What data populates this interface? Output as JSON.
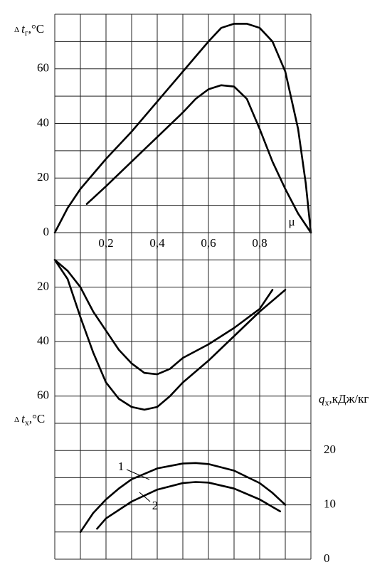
{
  "chart_data": [
    {
      "type": "line",
      "ylabel": {
        "symbol": "Δ",
        "var": "t",
        "sub": "г",
        "unit": ",°C"
      },
      "xlabel": "μ",
      "xlim": [
        0,
        1
      ],
      "xticks": [
        {
          "value": 0.2,
          "label": "0,2"
        },
        {
          "value": 0.4,
          "label": "0,4"
        },
        {
          "value": 0.6,
          "label": "0,6"
        },
        {
          "value": 0.8,
          "label": "0,8"
        }
      ],
      "xgrid": [
        0,
        0.1,
        0.2,
        0.3,
        0.4,
        0.5,
        0.6,
        0.7,
        0.8,
        0.9,
        1
      ],
      "ylim": [
        0,
        80
      ],
      "yticks": [
        0,
        20,
        40,
        60
      ],
      "ygrid": [
        0,
        10,
        20,
        30,
        40,
        50,
        60,
        70,
        80
      ],
      "inverted": false,
      "axis_side": "left",
      "series": [
        {
          "color": "#000000",
          "x": [
            0,
            0.05,
            0.1,
            0.2,
            0.3,
            0.4,
            0.5,
            0.6,
            0.65,
            0.7,
            0.75,
            0.8,
            0.85,
            0.9,
            0.95,
            0.98,
            1
          ],
          "values": [
            0,
            9,
            16,
            27,
            37,
            48,
            59,
            70,
            75,
            76.5,
            76.5,
            75,
            70,
            59,
            38,
            18,
            0
          ]
        },
        {
          "color": "#000000",
          "x": [
            0.125,
            0.2,
            0.3,
            0.4,
            0.5,
            0.55,
            0.6,
            0.65,
            0.7,
            0.75,
            0.8,
            0.85,
            0.9,
            0.95,
            1
          ],
          "values": [
            10.5,
            17,
            26,
            35,
            44,
            49,
            52.5,
            54,
            53.5,
            49,
            38,
            26,
            16,
            7,
            0
          ]
        }
      ]
    },
    {
      "type": "line",
      "ylabel": {
        "symbol": "Δ",
        "var": "t",
        "sub": "х",
        "unit": ",°C"
      },
      "xlim": [
        0,
        1
      ],
      "xgrid": [
        0,
        0.1,
        0.2,
        0.3,
        0.4,
        0.5,
        0.6,
        0.7,
        0.8,
        0.9,
        1
      ],
      "ylim": [
        0,
        70
      ],
      "yticks": [
        20,
        40,
        60
      ],
      "ygrid": [
        10,
        20,
        30,
        40,
        50,
        60,
        70
      ],
      "inverted": true,
      "axis_side": "left",
      "series": [
        {
          "color": "#000000",
          "x": [
            0,
            0.05,
            0.1,
            0.15,
            0.2,
            0.25,
            0.3,
            0.35,
            0.4,
            0.45,
            0.5,
            0.6,
            0.7,
            0.8,
            0.85
          ],
          "values": [
            10,
            14,
            20,
            29,
            36,
            43,
            48,
            51.5,
            52,
            50,
            46,
            41,
            35,
            28,
            21
          ]
        },
        {
          "color": "#000000",
          "x": [
            0,
            0.05,
            0.1,
            0.15,
            0.2,
            0.25,
            0.3,
            0.35,
            0.4,
            0.45,
            0.5,
            0.6,
            0.7,
            0.8,
            0.9
          ],
          "values": [
            10,
            17,
            31,
            44,
            55,
            61,
            64,
            65,
            64,
            60,
            55,
            47,
            38,
            29,
            21
          ]
        }
      ]
    },
    {
      "type": "line",
      "ylabel": {
        "var": "q",
        "sub": "х",
        "unit": ",кДж/кг"
      },
      "xlim": [
        0,
        1
      ],
      "xgrid": [
        0,
        0.1,
        0.2,
        0.3,
        0.4,
        0.5,
        0.6,
        0.7,
        0.8,
        0.9,
        1
      ],
      "ylim": [
        0,
        25
      ],
      "yticks": [
        0,
        10,
        20
      ],
      "ygrid": [
        0,
        5,
        10,
        15,
        20,
        25
      ],
      "inverted": false,
      "axis_side": "right",
      "series": [
        {
          "name": "1",
          "color": "#000000",
          "x": [
            0.1,
            0.15,
            0.2,
            0.25,
            0.3,
            0.4,
            0.5,
            0.55,
            0.6,
            0.7,
            0.8,
            0.85,
            0.9
          ],
          "values": [
            5,
            8.5,
            11,
            13,
            14.7,
            16.7,
            17.6,
            17.7,
            17.5,
            16.3,
            14,
            12.2,
            10
          ]
        },
        {
          "name": "2",
          "color": "#000000",
          "x": [
            0.165,
            0.2,
            0.3,
            0.4,
            0.5,
            0.55,
            0.6,
            0.7,
            0.8,
            0.88
          ],
          "values": [
            5.6,
            7.5,
            10.6,
            12.8,
            14,
            14.2,
            14.1,
            13,
            11,
            8.8
          ]
        }
      ]
    }
  ]
}
